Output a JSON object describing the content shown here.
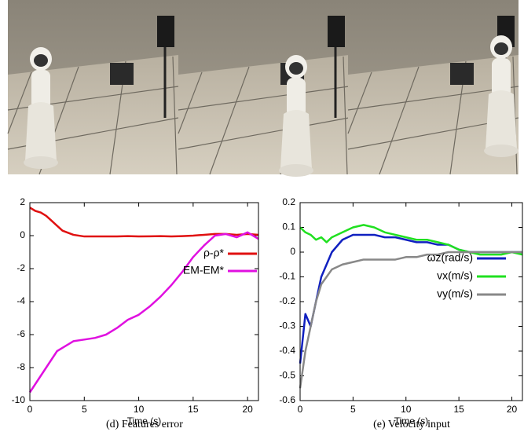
{
  "chart_data": [
    {
      "type": "line",
      "caption": "(d) Features error",
      "x_label": "Time (s)",
      "x": [
        0,
        0.5,
        1,
        1.5,
        2,
        2.5,
        3,
        4,
        5,
        6,
        7,
        8,
        9,
        10,
        11,
        12,
        13,
        14,
        15,
        16,
        17,
        18,
        19,
        20,
        21
      ],
      "series": [
        {
          "name": "ρ-ρ*",
          "color": "#e01010",
          "values": [
            1.7,
            1.5,
            1.4,
            1.2,
            0.9,
            0.6,
            0.3,
            0.05,
            -0.05,
            -0.05,
            -0.05,
            -0.05,
            -0.03,
            -0.05,
            -0.04,
            -0.03,
            -0.05,
            -0.03,
            0,
            0.05,
            0.1,
            0.1,
            0.05,
            0.1,
            0.05
          ]
        },
        {
          "name": "EM-EM*",
          "color": "#e010e0",
          "values": [
            -9.5,
            -9,
            -8.5,
            -8,
            -7.5,
            -7,
            -6.8,
            -6.4,
            -6.3,
            -6.2,
            -6.0,
            -5.6,
            -5.1,
            -4.8,
            -4.3,
            -3.7,
            -3.0,
            -2.2,
            -1.3,
            -0.6,
            0.0,
            0.1,
            -0.1,
            0.2,
            -0.2
          ]
        }
      ],
      "xlim": [
        0,
        21
      ],
      "xticks": [
        0,
        5,
        10,
        15,
        20
      ],
      "ylim": [
        -10,
        2
      ],
      "yticks": [
        -10,
        -8,
        -6,
        -4,
        -2,
        0,
        2
      ],
      "grid": false
    },
    {
      "type": "line",
      "caption": "(e) Velocity input",
      "x_label": "Time (s)",
      "x": [
        0,
        0.5,
        1,
        1.5,
        2,
        2.5,
        3,
        4,
        5,
        6,
        7,
        8,
        9,
        10,
        11,
        12,
        13,
        14,
        15,
        16,
        17,
        18,
        19,
        20,
        21
      ],
      "series": [
        {
          "name": "ωz(rad/s)",
          "color": "#1020c0",
          "values": [
            -0.45,
            -0.25,
            -0.3,
            -0.2,
            -0.1,
            -0.05,
            0.0,
            0.05,
            0.07,
            0.07,
            0.07,
            0.06,
            0.06,
            0.05,
            0.04,
            0.04,
            0.03,
            0.03,
            0.01,
            0,
            0,
            0,
            0,
            0,
            0
          ]
        },
        {
          "name": "vx(m/s)",
          "color": "#20e020",
          "values": [
            0.1,
            0.08,
            0.07,
            0.05,
            0.06,
            0.04,
            0.06,
            0.08,
            0.1,
            0.11,
            0.1,
            0.08,
            0.07,
            0.06,
            0.05,
            0.05,
            0.04,
            0.03,
            0.01,
            0,
            -0.01,
            -0.01,
            -0.01,
            0,
            -0.01
          ]
        },
        {
          "name": "vy(m/s)",
          "color": "#888888",
          "values": [
            -0.55,
            -0.4,
            -0.3,
            -0.2,
            -0.13,
            -0.1,
            -0.07,
            -0.05,
            -0.04,
            -0.03,
            -0.03,
            -0.03,
            -0.03,
            -0.02,
            -0.02,
            -0.01,
            -0.01,
            0,
            0,
            0,
            0,
            0,
            0,
            0,
            0
          ]
        }
      ],
      "xlim": [
        0,
        21
      ],
      "xticks": [
        0,
        5,
        10,
        15,
        20
      ],
      "ylim": [
        -0.6,
        0.2
      ],
      "yticks": [
        -0.6,
        -0.5,
        -0.4,
        -0.3,
        -0.2,
        -0.1,
        0,
        0.1,
        0.2
      ],
      "grid": false
    }
  ]
}
